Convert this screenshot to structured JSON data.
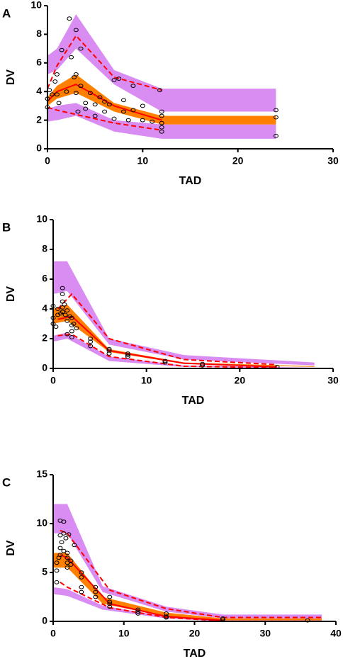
{
  "chart_data": [
    {
      "type": "vpc",
      "panel": "A",
      "xlabel": "TAD",
      "ylabel": "DV",
      "xlim": [
        0,
        30
      ],
      "xticks": [
        0,
        10,
        20,
        30
      ],
      "ylim": [
        0,
        10
      ],
      "yticks": [
        0,
        2,
        4,
        6,
        8,
        10
      ],
      "bands": [
        {
          "color": "#d98cf2",
          "x": [
            0,
            1,
            3,
            7,
            12,
            24
          ],
          "lower": [
            5.2,
            5.5,
            7.0,
            4.5,
            2.6,
            2.6
          ],
          "upper": [
            6.5,
            7.0,
            9.4,
            5.5,
            4.2,
            4.2
          ]
        },
        {
          "color": "#d98cf2",
          "x": [
            0,
            1,
            3,
            7,
            12,
            24
          ],
          "lower": [
            1.9,
            2.0,
            2.3,
            1.2,
            0.7,
            0.7
          ],
          "upper": [
            2.8,
            3.0,
            3.2,
            2.0,
            1.7,
            1.7
          ]
        },
        {
          "color": "#ff8000",
          "x": [
            0,
            1,
            3,
            7,
            12,
            24
          ],
          "lower": [
            3.0,
            3.5,
            3.9,
            2.6,
            1.7,
            1.7
          ],
          "upper": [
            3.6,
            4.4,
            5.2,
            3.2,
            2.3,
            2.3
          ]
        }
      ],
      "lines": [
        {
          "color": "#ff0000",
          "dashed": false,
          "x": [
            0,
            1,
            3,
            7,
            12
          ],
          "values": [
            3.3,
            4.0,
            4.5,
            3.0,
            2.0
          ]
        },
        {
          "color": "#ff0000",
          "dashed": true,
          "x": [
            0,
            1,
            3,
            7,
            12
          ],
          "values": [
            4.2,
            5.8,
            7.9,
            5.0,
            4.1
          ]
        },
        {
          "color": "#ff0000",
          "dashed": true,
          "x": [
            0,
            1,
            3,
            7,
            12
          ],
          "values": [
            2.9,
            2.7,
            2.4,
            1.8,
            1.3
          ]
        }
      ],
      "points": {
        "x": [
          0,
          0,
          0.2,
          0.5,
          0.8,
          1,
          1,
          1.2,
          1.5,
          2,
          2.3,
          2.5,
          2.8,
          3,
          3,
          3,
          3.2,
          3.5,
          3.5,
          4,
          4,
          4.5,
          5,
          5,
          5.5,
          6,
          6,
          6.5,
          7,
          7,
          7.5,
          8,
          8,
          8.5,
          9,
          9,
          10,
          10,
          11,
          11.8,
          12,
          12,
          12,
          12,
          12,
          24,
          24,
          24
        ],
        "y": [
          2.9,
          3.5,
          4.1,
          3.8,
          4.7,
          5.2,
          3.8,
          3.2,
          6.9,
          4.0,
          9.1,
          6.4,
          5.0,
          8.3,
          5.2,
          3.9,
          2.6,
          7.0,
          4.4,
          3.2,
          2.8,
          3.9,
          3.1,
          2.3,
          3.6,
          3.3,
          2.6,
          3.1,
          4.8,
          2.1,
          4.9,
          3.4,
          2.6,
          2.0,
          4.4,
          2.7,
          3.0,
          2.0,
          1.9,
          4.1,
          2.6,
          2.3,
          1.8,
          1.5,
          1.2,
          2.7,
          2.2,
          0.9
        ]
      }
    },
    {
      "type": "vpc",
      "panel": "B",
      "xlabel": "TAD",
      "ylabel": "DV",
      "xlim": [
        0,
        30
      ],
      "xticks": [
        0,
        10,
        20,
        30
      ],
      "ylim": [
        0,
        10
      ],
      "yticks": [
        0,
        2,
        4,
        6,
        8,
        10
      ],
      "bands": [
        {
          "color": "#d98cf2",
          "x": [
            0,
            1.5,
            6,
            14,
            28
          ],
          "lower": [
            5.0,
            5.2,
            1.6,
            0.6,
            0.2
          ],
          "upper": [
            7.2,
            7.2,
            2.0,
            0.9,
            0.4
          ]
        },
        {
          "color": "#d98cf2",
          "x": [
            0,
            1.5,
            6,
            14,
            28
          ],
          "lower": [
            1.8,
            2.0,
            0.5,
            0.1,
            0.0
          ],
          "upper": [
            2.2,
            2.4,
            0.8,
            0.2,
            0.05
          ]
        },
        {
          "color": "#ff8000",
          "x": [
            0,
            1.5,
            6,
            14,
            28
          ],
          "lower": [
            3.0,
            3.2,
            1.1,
            0.3,
            0.1
          ],
          "upper": [
            4.0,
            4.3,
            1.3,
            0.4,
            0.15
          ]
        }
      ],
      "lines": [
        {
          "color": "#ff0000",
          "dashed": false,
          "x": [
            0.5,
            2,
            6,
            14,
            24
          ],
          "values": [
            3.3,
            3.5,
            1.2,
            0.35,
            0.1
          ]
        },
        {
          "color": "#ff0000",
          "dashed": true,
          "x": [
            0.5,
            2,
            6,
            14,
            24
          ],
          "values": [
            4.0,
            5.0,
            2.0,
            0.6,
            0.25
          ]
        },
        {
          "color": "#ff0000",
          "dashed": true,
          "x": [
            0.5,
            2,
            6,
            14,
            24
          ],
          "values": [
            2.2,
            2.3,
            0.8,
            0.15,
            0.05
          ]
        }
      ],
      "points": {
        "x": [
          0,
          0,
          0,
          0.3,
          0.5,
          0.5,
          0.8,
          1,
          1,
          1,
          1,
          1,
          1.2,
          1.3,
          1.5,
          1.5,
          1.5,
          1.8,
          2,
          2,
          2,
          2,
          2.2,
          2.5,
          4,
          4,
          4,
          6,
          6,
          6,
          8,
          8,
          8,
          12,
          12,
          16,
          16,
          24
        ],
        "y": [
          3.0,
          3.4,
          4.2,
          2.8,
          3.6,
          4.0,
          3.7,
          5.4,
          5.0,
          4.5,
          4.1,
          3.8,
          4.3,
          3.6,
          3.9,
          3.2,
          2.3,
          3.5,
          3.4,
          2.9,
          2.5,
          2.1,
          3.0,
          2.7,
          2.0,
          1.8,
          1.5,
          1.3,
          1.2,
          1.0,
          1.0,
          0.9,
          0.8,
          0.5,
          0.4,
          0.3,
          0.2,
          0.1
        ]
      }
    },
    {
      "type": "vpc",
      "panel": "C",
      "xlabel": "TAD",
      "ylabel": "DV",
      "xlim": [
        0,
        40
      ],
      "xticks": [
        0,
        10,
        20,
        30,
        40
      ],
      "ylim": [
        0,
        15
      ],
      "yticks": [
        0,
        5,
        10,
        15
      ],
      "bands": [
        {
          "color": "#d98cf2",
          "x": [
            0,
            2,
            7,
            16,
            24,
            38
          ],
          "lower": [
            9.0,
            9.0,
            3.0,
            1.0,
            0.3,
            0.3
          ],
          "upper": [
            12.0,
            12.0,
            3.6,
            1.5,
            0.7,
            0.7
          ]
        },
        {
          "color": "#d98cf2",
          "x": [
            0,
            2,
            7,
            16,
            24,
            38
          ],
          "lower": [
            2.8,
            2.6,
            1.2,
            0.3,
            0.0,
            0.0
          ],
          "upper": [
            3.5,
            3.3,
            1.6,
            0.5,
            0.1,
            0.1
          ]
        },
        {
          "color": "#ff8000",
          "x": [
            0,
            2,
            7,
            16,
            24,
            38
          ],
          "lower": [
            5.5,
            5.5,
            1.8,
            0.5,
            0.1,
            0.1
          ],
          "upper": [
            7.0,
            7.0,
            2.5,
            0.9,
            0.3,
            0.3
          ]
        }
      ],
      "lines": [
        {
          "color": "#ff0000",
          "dashed": false,
          "x": [
            1,
            2,
            8,
            16,
            24
          ],
          "values": [
            6.8,
            6.5,
            1.8,
            0.5,
            0.1
          ]
        },
        {
          "color": "#ff0000",
          "dashed": true,
          "x": [
            1,
            2,
            8,
            16,
            24,
            38
          ],
          "values": [
            9.3,
            9.0,
            3.2,
            1.3,
            0.4,
            0.4
          ]
        },
        {
          "color": "#ff0000",
          "dashed": true,
          "x": [
            1,
            2,
            8,
            16,
            24
          ],
          "values": [
            4.0,
            3.5,
            1.4,
            0.4,
            0.05
          ]
        }
      ],
      "points": {
        "x": [
          0.5,
          0.5,
          0.5,
          0.8,
          1,
          1,
          1,
          1,
          1.2,
          1.5,
          1.5,
          1.5,
          1.8,
          2,
          2,
          2,
          2,
          2.2,
          2.5,
          2.5,
          3,
          4,
          4,
          4,
          4,
          6,
          6,
          6,
          8,
          8,
          8,
          8,
          12,
          12,
          12,
          16,
          16,
          16,
          24,
          24,
          36
        ],
        "y": [
          4.0,
          5.2,
          6.0,
          6.5,
          10.3,
          8.8,
          7.5,
          6.8,
          8.1,
          10.2,
          9.0,
          7.2,
          8.5,
          7.0,
          6.5,
          6.0,
          5.5,
          8.9,
          6.2,
          5.8,
          7.8,
          5.0,
          4.5,
          3.5,
          3.0,
          3.5,
          3.0,
          2.5,
          2.5,
          2.0,
          1.8,
          1.5,
          1.2,
          1.0,
          0.8,
          0.8,
          0.5,
          0.4,
          0.3,
          0.2,
          0.1
        ]
      }
    }
  ]
}
